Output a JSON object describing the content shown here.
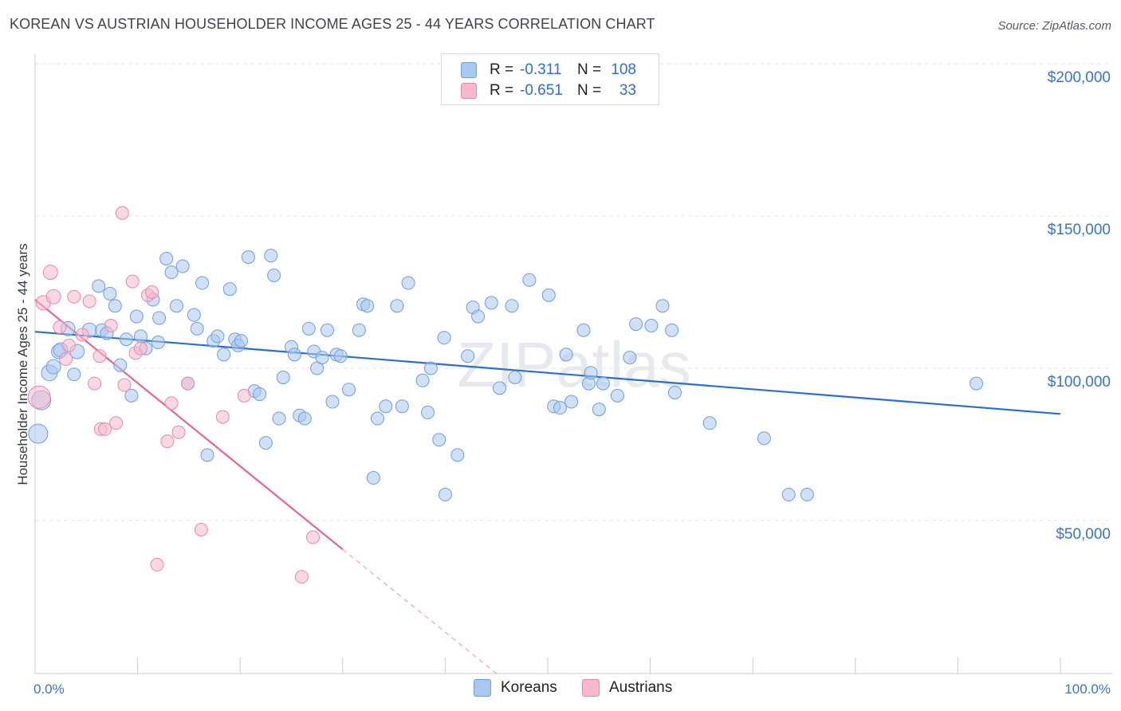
{
  "title": "KOREAN VS AUSTRIAN HOUSEHOLDER INCOME AGES 25 - 44 YEARS CORRELATION CHART",
  "source": "Source: ZipAtlas.com",
  "watermark": "ZIPatlas",
  "legend_stats": [
    {
      "r_label": "R =",
      "r_value": "-0.311",
      "n_label": "N =",
      "n_value": "108",
      "color": "#a9c8f0"
    },
    {
      "r_label": "R =",
      "r_value": "-0.651",
      "n_label": "N =",
      "n_value": "33",
      "color": "#f7b8cc"
    }
  ],
  "colors": {
    "korean_fill": "#a9c8f0",
    "korean_stroke": "#6d9fdc",
    "korean_line": "#2c6fcb",
    "austrian_fill": "#f7b8cc",
    "austrian_stroke": "#e889a8",
    "austrian_line": "#e5678f",
    "axis_text": "#3a74c9",
    "grid": "#e3e6ea"
  },
  "chart_data": {
    "type": "scatter",
    "title": "KOREAN VS AUSTRIAN HOUSEHOLDER INCOME AGES 25 - 44 YEARS CORRELATION CHART",
    "xlabel": "",
    "ylabel": "Householder Income Ages 25 - 44 years",
    "xlim": [
      0,
      100
    ],
    "ylim": [
      0,
      205000
    ],
    "x_tick_labels": [
      "0.0%",
      "100.0%"
    ],
    "y_ticks": [
      50000,
      100000,
      150000,
      200000
    ],
    "y_tick_labels": [
      "$50,000",
      "$100,000",
      "$150,000",
      "$200,000"
    ],
    "grid": true,
    "legend_position": "bottom",
    "series": [
      {
        "name": "Koreans",
        "trend": {
          "x0": 0,
          "y0": 112000,
          "x1": 100,
          "y1": 85000
        },
        "points": [
          [
            0.3,
            78500,
            12
          ],
          [
            0.6,
            89500,
            12
          ],
          [
            1.4,
            98500,
            10
          ],
          [
            1.8,
            100500,
            9
          ],
          [
            2.3,
            105500,
            9
          ],
          [
            2.5,
            106000,
            9
          ],
          [
            3.2,
            113000,
            9
          ],
          [
            3.8,
            98000,
            8
          ],
          [
            4.1,
            105500,
            9
          ],
          [
            5.3,
            112500,
            9
          ],
          [
            6.2,
            127000,
            8
          ],
          [
            6.5,
            112500,
            8
          ],
          [
            7.0,
            111500,
            8
          ],
          [
            7.3,
            124500,
            8
          ],
          [
            7.8,
            120500,
            8
          ],
          [
            8.3,
            101000,
            8
          ],
          [
            8.9,
            109500,
            8
          ],
          [
            9.4,
            91000,
            8
          ],
          [
            9.9,
            117000,
            8
          ],
          [
            10.3,
            110500,
            8
          ],
          [
            10.8,
            106500,
            8
          ],
          [
            11.5,
            122500,
            8
          ],
          [
            12.0,
            108500,
            8
          ],
          [
            12.1,
            116500,
            8
          ],
          [
            12.8,
            136000,
            8
          ],
          [
            13.3,
            131500,
            8
          ],
          [
            13.8,
            120500,
            8
          ],
          [
            14.4,
            133500,
            8
          ],
          [
            14.9,
            95000,
            8
          ],
          [
            15.5,
            117500,
            8
          ],
          [
            15.8,
            113000,
            8
          ],
          [
            16.3,
            128000,
            8
          ],
          [
            16.8,
            71500,
            8
          ],
          [
            17.4,
            109000,
            8
          ],
          [
            17.8,
            110500,
            8
          ],
          [
            18.4,
            104500,
            8
          ],
          [
            19.0,
            126000,
            8
          ],
          [
            19.5,
            109500,
            8
          ],
          [
            19.8,
            107500,
            8
          ],
          [
            20.1,
            109000,
            8
          ],
          [
            20.8,
            136500,
            8
          ],
          [
            21.4,
            92500,
            8
          ],
          [
            21.9,
            91500,
            8
          ],
          [
            22.5,
            75500,
            8
          ],
          [
            23.0,
            137000,
            8
          ],
          [
            23.3,
            130500,
            8
          ],
          [
            23.8,
            83500,
            8
          ],
          [
            24.2,
            97000,
            8
          ],
          [
            25.0,
            107000,
            8
          ],
          [
            25.3,
            104500,
            8
          ],
          [
            25.8,
            84500,
            8
          ],
          [
            26.3,
            83500,
            8
          ],
          [
            26.7,
            113000,
            8
          ],
          [
            27.2,
            105500,
            8
          ],
          [
            27.5,
            100000,
            8
          ],
          [
            28.0,
            103500,
            8
          ],
          [
            28.5,
            112500,
            8
          ],
          [
            29.0,
            89000,
            8
          ],
          [
            29.4,
            104500,
            8
          ],
          [
            29.8,
            104000,
            8
          ],
          [
            30.6,
            93000,
            8
          ],
          [
            31.6,
            112500,
            8
          ],
          [
            32.0,
            121000,
            8
          ],
          [
            32.4,
            120500,
            8
          ],
          [
            33.0,
            64000,
            8
          ],
          [
            33.4,
            83500,
            8
          ],
          [
            34.2,
            87500,
            8
          ],
          [
            35.3,
            120500,
            8
          ],
          [
            35.8,
            87500,
            8
          ],
          [
            36.4,
            128000,
            8
          ],
          [
            37.8,
            96000,
            8
          ],
          [
            38.3,
            85500,
            8
          ],
          [
            38.6,
            100000,
            8
          ],
          [
            39.4,
            76500,
            8
          ],
          [
            39.9,
            110000,
            8
          ],
          [
            40.0,
            58500,
            8
          ],
          [
            41.2,
            71500,
            8
          ],
          [
            42.2,
            104000,
            8
          ],
          [
            42.7,
            120000,
            8
          ],
          [
            43.2,
            117000,
            8
          ],
          [
            44.5,
            121500,
            8
          ],
          [
            45.3,
            93500,
            8
          ],
          [
            46.5,
            120500,
            8
          ],
          [
            46.8,
            97000,
            8
          ],
          [
            48.2,
            129000,
            8
          ],
          [
            50.1,
            124000,
            8
          ],
          [
            50.6,
            87500,
            8
          ],
          [
            51.2,
            87000,
            8
          ],
          [
            51.8,
            104500,
            8
          ],
          [
            52.3,
            89000,
            8
          ],
          [
            53.5,
            112500,
            8
          ],
          [
            54.0,
            95000,
            8
          ],
          [
            54.2,
            98500,
            8
          ],
          [
            55.0,
            86500,
            8
          ],
          [
            55.4,
            95000,
            8
          ],
          [
            56.8,
            91000,
            8
          ],
          [
            58.0,
            103500,
            8
          ],
          [
            58.6,
            114500,
            8
          ],
          [
            60.1,
            114000,
            8
          ],
          [
            61.2,
            120500,
            8
          ],
          [
            62.1,
            112500,
            8
          ],
          [
            62.4,
            92000,
            8
          ],
          [
            65.8,
            82000,
            8
          ],
          [
            71.1,
            77000,
            8
          ],
          [
            73.5,
            58500,
            8
          ],
          [
            75.3,
            58500,
            8
          ],
          [
            91.8,
            95000,
            8
          ]
        ]
      },
      {
        "name": "Austrians",
        "trend": {
          "x0": 0,
          "y0": 122500,
          "x1": 30,
          "y1": 40500,
          "dash_to_x": 45
        },
        "points": [
          [
            0.4,
            90500,
            14
          ],
          [
            0.8,
            121500,
            9
          ],
          [
            1.8,
            123500,
            9
          ],
          [
            1.5,
            131500,
            9
          ],
          [
            2.4,
            113500,
            8
          ],
          [
            3.0,
            103000,
            8
          ],
          [
            3.3,
            107500,
            8
          ],
          [
            3.8,
            123500,
            8
          ],
          [
            4.6,
            111000,
            8
          ],
          [
            5.3,
            122000,
            8
          ],
          [
            5.8,
            95000,
            8
          ],
          [
            6.3,
            104000,
            8
          ],
          [
            6.4,
            80000,
            8
          ],
          [
            6.8,
            80000,
            8
          ],
          [
            7.4,
            114000,
            8
          ],
          [
            7.9,
            82000,
            8
          ],
          [
            8.5,
            151000,
            8
          ],
          [
            8.7,
            94500,
            8
          ],
          [
            9.5,
            128500,
            8
          ],
          [
            9.8,
            105000,
            8
          ],
          [
            10.3,
            106500,
            8
          ],
          [
            11.0,
            124000,
            8
          ],
          [
            11.4,
            125000,
            8
          ],
          [
            11.9,
            35500,
            8
          ],
          [
            12.9,
            76000,
            8
          ],
          [
            13.3,
            88500,
            8
          ],
          [
            14.0,
            79000,
            8
          ],
          [
            14.9,
            95000,
            8
          ],
          [
            16.2,
            47000,
            8
          ],
          [
            18.3,
            84000,
            8
          ],
          [
            20.4,
            91000,
            8
          ],
          [
            26.0,
            31500,
            8
          ],
          [
            27.1,
            44500,
            8
          ]
        ]
      }
    ]
  },
  "bottom_legend": {
    "koreans": "Koreans",
    "austrians": "Austrians"
  }
}
